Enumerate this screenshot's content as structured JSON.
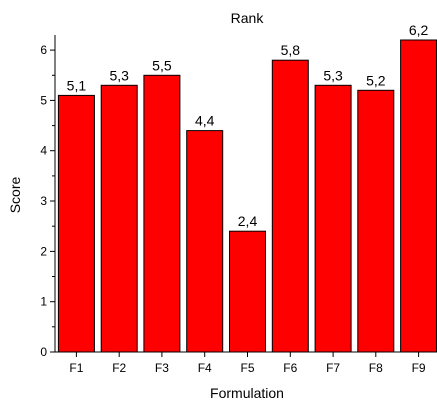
{
  "chart_data": {
    "type": "bar",
    "title": "Rank",
    "xlabel": "Formulation",
    "ylabel": "Score",
    "categories": [
      "F1",
      "F2",
      "F3",
      "F4",
      "F5",
      "F6",
      "F7",
      "F8",
      "F9"
    ],
    "values": [
      5.1,
      5.3,
      5.5,
      4.4,
      2.4,
      5.8,
      5.3,
      5.2,
      6.2
    ],
    "value_labels": [
      "5,1",
      "5,3",
      "5,5",
      "4,4",
      "2,4",
      "5,8",
      "5,3",
      "5,2",
      "6,2"
    ],
    "ylim": [
      0,
      6.3
    ],
    "yticks": [
      0,
      1,
      2,
      3,
      4,
      5,
      6
    ],
    "ytick_labels": [
      "0",
      "1",
      "2",
      "3",
      "4",
      "5",
      "6"
    ],
    "grid": false,
    "legend": "none",
    "colors": {
      "bar_fill": "#ff0000",
      "bar_stroke": "#000000",
      "axis": "#000000"
    }
  }
}
